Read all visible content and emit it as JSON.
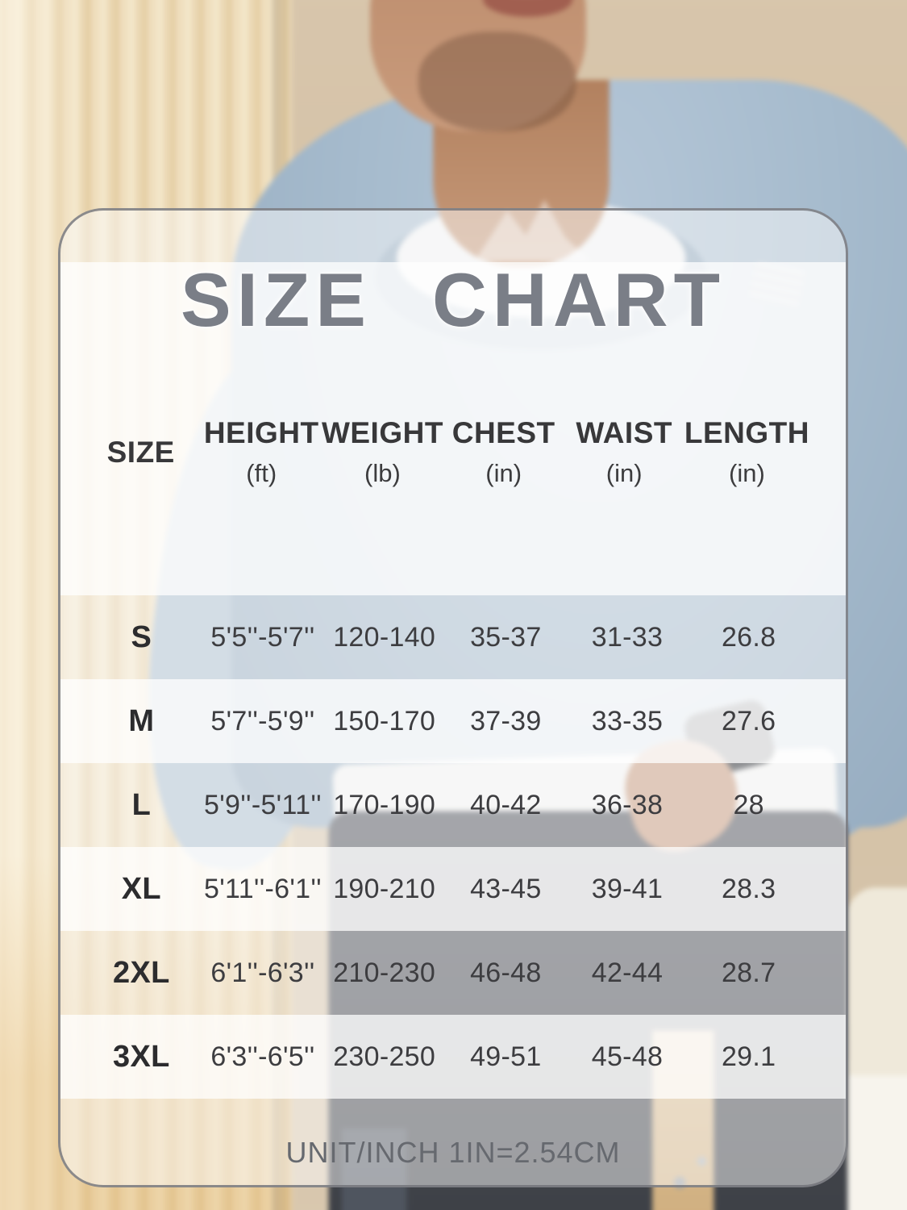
{
  "title": "SIZE CHART",
  "table": {
    "columns": [
      {
        "label": "SIZE",
        "unit": ""
      },
      {
        "label": "HEIGHT",
        "unit": "(ft)"
      },
      {
        "label": "WEIGHT",
        "unit": "(lb)"
      },
      {
        "label": "CHEST",
        "unit": "(in)"
      },
      {
        "label": "WAIST",
        "unit": "(in)"
      },
      {
        "label": "LENGTH",
        "unit": "(in)"
      }
    ],
    "rows": [
      {
        "size": "S",
        "height": "5'5''-5'7''",
        "weight": "120-140",
        "chest": "35-37",
        "waist": "31-33",
        "length": "26.8"
      },
      {
        "size": "M",
        "height": "5'7''-5'9''",
        "weight": "150-170",
        "chest": "37-39",
        "waist": "33-35",
        "length": "27.6"
      },
      {
        "size": "L",
        "height": "5'9''-5'11''",
        "weight": "170-190",
        "chest": "40-42",
        "waist": "36-38",
        "length": "28"
      },
      {
        "size": "XL",
        "height": "5'11''-6'1''",
        "weight": "190-210",
        "chest": "43-45",
        "waist": "39-41",
        "length": "28.3"
      },
      {
        "size": "2XL",
        "height": "6'1''-6'3''",
        "weight": "210-230",
        "chest": "46-48",
        "waist": "42-44",
        "length": "28.7"
      },
      {
        "size": "3XL",
        "height": "6'3''-6'5''",
        "weight": "230-250",
        "chest": "49-51",
        "waist": "45-48",
        "length": "29.1"
      }
    ]
  },
  "footer": {
    "note": "UNIT/INCH 1IN=2.54CM"
  },
  "colors": {
    "title_text": "#7a7e87",
    "header_text": "#38383a",
    "cell_text": "#3d3d40",
    "footer_text": "#66696f",
    "sweatshirt": "#a6bacc",
    "curtain": "#ecd9b5",
    "wall": "#d3c1a6",
    "pants": "#464952",
    "card_overlay": "#ffffff"
  },
  "chart_data": {
    "type": "table",
    "title": "SIZE CHART",
    "columns": [
      "SIZE",
      "HEIGHT (ft)",
      "WEIGHT (lb)",
      "CHEST (in)",
      "WAIST (in)",
      "LENGTH (in)"
    ],
    "rows": [
      [
        "S",
        "5'5''-5'7''",
        "120-140",
        "35-37",
        "31-33",
        "26.8"
      ],
      [
        "M",
        "5'7''-5'9''",
        "150-170",
        "37-39",
        "33-35",
        "27.6"
      ],
      [
        "L",
        "5'9''-5'11''",
        "170-190",
        "40-42",
        "36-38",
        "28"
      ],
      [
        "XL",
        "5'11''-6'1''",
        "190-210",
        "43-45",
        "39-41",
        "28.3"
      ],
      [
        "2XL",
        "6'1''-6'3''",
        "210-230",
        "46-48",
        "42-44",
        "28.7"
      ],
      [
        "3XL",
        "6'3''-6'5''",
        "230-250",
        "49-51",
        "45-48",
        "29.1"
      ]
    ],
    "note": "UNIT/INCH 1IN=2.54CM",
    "legend_position": "none",
    "grid": false
  }
}
